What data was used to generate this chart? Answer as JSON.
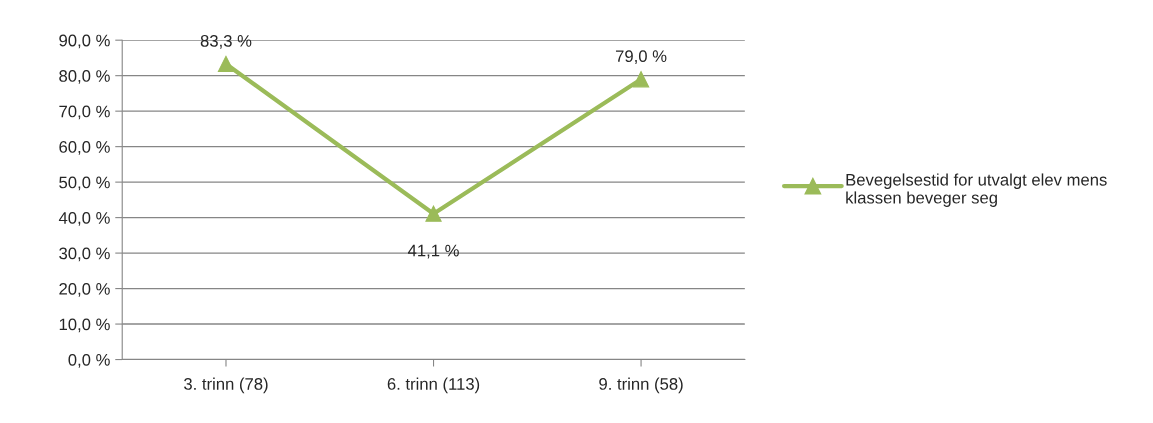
{
  "chart_data": {
    "type": "line",
    "categories": [
      "3. trinn (78)",
      "6. trinn (113)",
      "9. trinn (58)"
    ],
    "series": [
      {
        "name": "Bevegelsestid for utvalgt elev mens klassen beveger seg",
        "color": "#9bbb59",
        "values": [
          83.3,
          41.1,
          79.0
        ],
        "value_labels": [
          "83,3 %",
          "41,1 %",
          "79,0 %"
        ]
      }
    ],
    "ylim": [
      0,
      90
    ],
    "yticks": [
      {
        "value": 0,
        "label": "0,0 %"
      },
      {
        "value": 10,
        "label": "10,0 %"
      },
      {
        "value": 20,
        "label": "20,0 %"
      },
      {
        "value": 30,
        "label": "30,0 %"
      },
      {
        "value": 40,
        "label": "40,0 %"
      },
      {
        "value": 50,
        "label": "50,0 %"
      },
      {
        "value": 60,
        "label": "60,0 %"
      },
      {
        "value": 70,
        "label": "70,0 %"
      },
      {
        "value": 80,
        "label": "80,0 %"
      },
      {
        "value": 90,
        "label": "90,0 %"
      }
    ],
    "grid": "y",
    "legend": "right",
    "marker": "triangle",
    "line_style": "solid"
  }
}
